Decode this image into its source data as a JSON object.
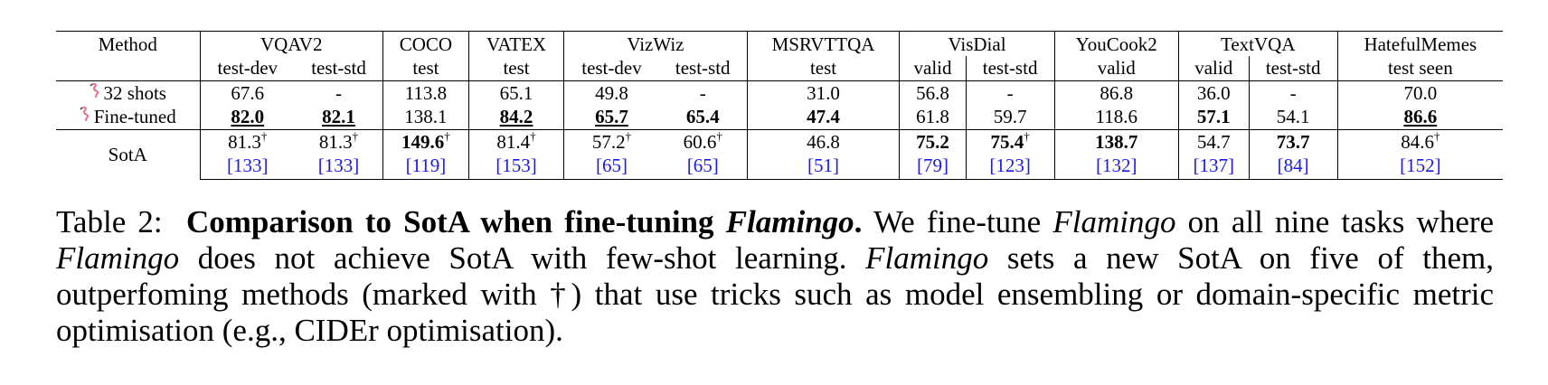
{
  "table": {
    "method_header": "Method",
    "columns": [
      {
        "dataset": "VQAV2",
        "splits": [
          "test-dev",
          "test-std"
        ]
      },
      {
        "dataset": "COCO",
        "splits": [
          "test"
        ]
      },
      {
        "dataset": "VATEX",
        "splits": [
          "test"
        ]
      },
      {
        "dataset": "VizWiz",
        "splits": [
          "test-dev",
          "test-std"
        ]
      },
      {
        "dataset": "MSRVTTQA",
        "splits": [
          "test"
        ]
      },
      {
        "dataset": "VisDial",
        "splits": [
          "valid",
          "test-std"
        ]
      },
      {
        "dataset": "YouCook2",
        "splits": [
          "valid"
        ]
      },
      {
        "dataset": "TextVQA",
        "splits": [
          "valid",
          "test-std"
        ]
      },
      {
        "dataset": "HatefulMemes",
        "splits": [
          "test seen"
        ]
      }
    ],
    "rows": [
      {
        "method": "32 shots",
        "icon": "flamingo-icon",
        "cells": [
          "67.6",
          "-",
          "113.8",
          "65.1",
          "49.8",
          "-",
          "31.0",
          "56.8",
          "-",
          "86.8",
          "36.0",
          "-",
          "70.0"
        ]
      },
      {
        "method": "Fine-tuned",
        "icon": "flamingo-icon",
        "cells": [
          "82.0",
          "82.1",
          "138.1",
          "84.2",
          "65.7",
          "65.4",
          "47.4",
          "61.8",
          "59.7",
          "118.6",
          "57.1",
          "54.1",
          "86.6"
        ]
      },
      {
        "method": "SotA",
        "cells": [
          "81.3",
          "81.3",
          "149.6",
          "81.4",
          "57.2",
          "60.6",
          "46.8",
          "75.2",
          "75.4",
          "138.7",
          "54.7",
          "73.7",
          "84.6"
        ],
        "dagger": "†",
        "citations": [
          "[133]",
          "[133]",
          "[119]",
          "[153]",
          "[65]",
          "[65]",
          "[51]",
          "[79]",
          "[123]",
          "[132]",
          "[137]",
          "[84]",
          "[152]"
        ]
      }
    ]
  },
  "caption": {
    "label": "Table 2:",
    "title_a": "Comparison to SotA when fine-tuning",
    "title_b": "Flamingo",
    "title_c": ".",
    "t1": "We fine-tune",
    "t2": "Flamingo",
    "t3": "on all nine tasks where",
    "t4": "Flamingo",
    "t5": "does not achieve SotA with few-shot learning.",
    "t6": "Flamingo",
    "t7": "sets a new SotA on five of them, outperfoming methods (marked with †) that use tricks such as model ensembling or domain-specific metric optimisation (e.g., CIDEr optimisation)."
  },
  "colors": {
    "citation": "#1a1aee",
    "flamingo_icon": "#e8708a"
  }
}
